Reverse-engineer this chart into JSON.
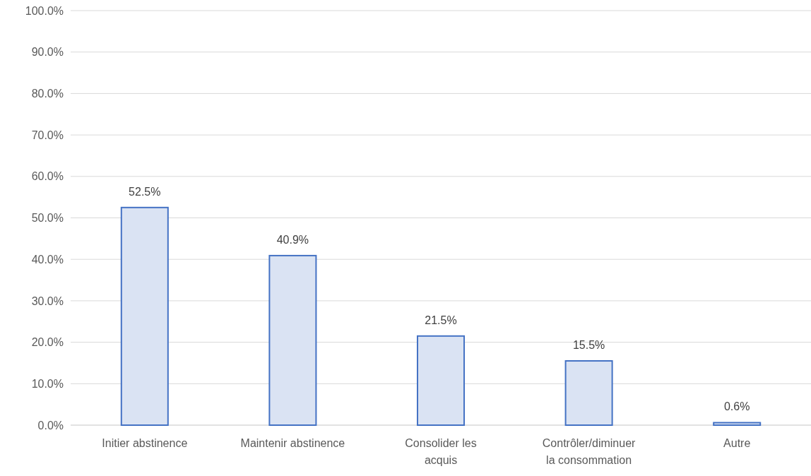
{
  "chart_data": {
    "type": "bar",
    "categories": [
      "Initier abstinence",
      "Maintenir abstinence",
      "Consolider les acquis",
      "Contrôler/diminuer la consommation",
      "Autre"
    ],
    "values": [
      52.5,
      40.9,
      21.5,
      15.5,
      0.6
    ],
    "value_labels": [
      "52.5%",
      "40.9%",
      "21.5%",
      "15.5%",
      "0.6%"
    ],
    "color": "#dae3f3",
    "ylim": [
      0,
      100
    ],
    "yticks": [
      {
        "value": 0,
        "label": "0.0%"
      },
      {
        "value": 10,
        "label": "10.0%"
      },
      {
        "value": 20,
        "label": "20.0%"
      },
      {
        "value": 30,
        "label": "30.0%"
      },
      {
        "value": 40,
        "label": "40.0%"
      },
      {
        "value": 50,
        "label": "50.0%"
      },
      {
        "value": 60,
        "label": "60.0%"
      },
      {
        "value": 70,
        "label": "70.0%"
      },
      {
        "value": 80,
        "label": "80.0%"
      },
      {
        "value": 90,
        "label": "90.0%"
      },
      {
        "value": 100,
        "label": "100.0%"
      }
    ],
    "grid": "y"
  }
}
